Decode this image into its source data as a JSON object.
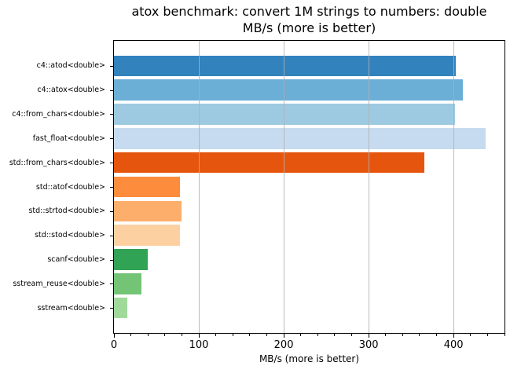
{
  "title": {
    "line1": "atox benchmark: convert 1M strings to numbers: double",
    "line2": "MB/s (more is better)"
  },
  "x_axis": {
    "label": "MB/s (more is better)",
    "major_ticks": [
      0,
      100,
      200,
      300,
      400
    ],
    "minor_tick_interval": 20
  },
  "chart_data": {
    "type": "bar",
    "orientation": "horizontal",
    "title": "atox benchmark: convert 1M strings to numbers: double",
    "subtitle": "MB/s (more is better)",
    "xlabel": "MB/s (more is better)",
    "ylabel": "",
    "xlim": [
      0,
      460
    ],
    "x_major_ticks": [
      0,
      100,
      200,
      300,
      400
    ],
    "x_minor_tick_interval": 20,
    "grid": "vertical gridlines at major x ticks, drawn above bars",
    "legend_position": "none",
    "categories": [
      "c4::atod<double>",
      "c4::atox<double>",
      "c4::from_chars<double>",
      "fast_float<double>",
      "std::from_chars<double>",
      "std::atof<double>",
      "std::strtod<double>",
      "std::stod<double>",
      "scanf<double>",
      "sstream_reuse<double>",
      "sstream<double>"
    ],
    "values": [
      403,
      411,
      402,
      438,
      366,
      78,
      80,
      78,
      40,
      32,
      16
    ],
    "bar_colors": [
      "#3182bd",
      "#6baed6",
      "#9ecae1",
      "#c6dbef",
      "#e6550d",
      "#fd8d3c",
      "#fdae6b",
      "#fdd0a2",
      "#31a354",
      "#74c476",
      "#a1d99b"
    ]
  },
  "colors": {
    "grid": "#b0b0b0",
    "spine": "#000000",
    "background": "#ffffff"
  }
}
